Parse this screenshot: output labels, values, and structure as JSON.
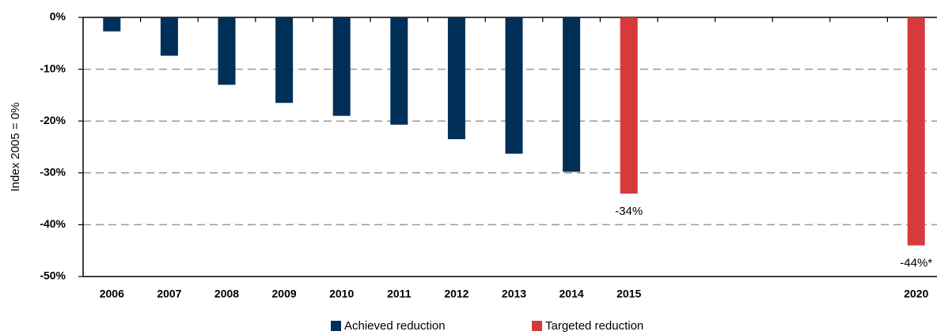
{
  "chart_data": {
    "type": "bar",
    "y_label": "Index 2005 = 0%",
    "categories": [
      "2006",
      "2007",
      "2008",
      "2009",
      "2010",
      "2011",
      "2012",
      "2013",
      "2014",
      "2015",
      null,
      null,
      null,
      null,
      "2020"
    ],
    "series": [
      {
        "name": "Achieved reduction",
        "color": "#003057",
        "values": [
          -2.7,
          -7.4,
          -13,
          -16.5,
          -19,
          -20.7,
          -23.5,
          -26.3,
          -29.8,
          null,
          null,
          null,
          null,
          null,
          null
        ]
      },
      {
        "name": "Targeted reduction",
        "color": "#d63a3a",
        "values": [
          null,
          null,
          null,
          null,
          null,
          null,
          null,
          null,
          null,
          -34,
          null,
          null,
          null,
          null,
          -44
        ],
        "value_labels": [
          null,
          null,
          null,
          null,
          null,
          null,
          null,
          null,
          null,
          "-34%",
          null,
          null,
          null,
          null,
          "-44%*"
        ]
      }
    ],
    "ylim": [
      -50,
      0
    ],
    "yticks": [
      {
        "value": 0,
        "label": "0%"
      },
      {
        "value": -10,
        "label": "-10%"
      },
      {
        "value": -20,
        "label": "-20%"
      },
      {
        "value": -30,
        "label": "-30%"
      },
      {
        "value": -40,
        "label": "-40%"
      },
      {
        "value": -50,
        "label": "-50%"
      }
    ],
    "grid": true,
    "legend": "bottom"
  }
}
